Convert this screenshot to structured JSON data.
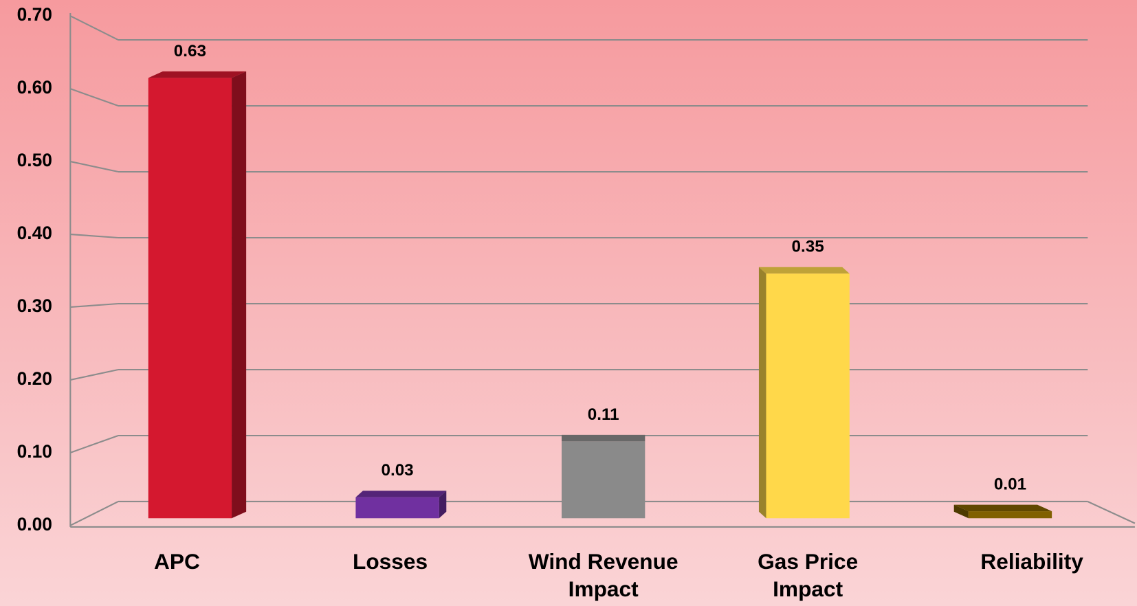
{
  "chart_data": {
    "type": "bar",
    "categories": [
      "APC",
      "Losses",
      "Wind Revenue Impact",
      "Gas Price Impact",
      "Reliability"
    ],
    "values": [
      0.63,
      0.03,
      0.11,
      0.35,
      0.01
    ],
    "colors": [
      "#d4182f",
      "#7030a0",
      "#8a8a8a",
      "#ffd84a",
      "#806000"
    ],
    "ylim": [
      0,
      0.7
    ],
    "yticks": [
      {
        "value": 0,
        "label": "0.00"
      },
      {
        "value": 0.1,
        "label": "0.10"
      },
      {
        "value": 0.2,
        "label": "0.20"
      },
      {
        "value": 0.3,
        "label": "0.30"
      },
      {
        "value": 0.4,
        "label": "0.40"
      },
      {
        "value": 0.5,
        "label": "0.50"
      },
      {
        "value": 0.6,
        "label": "0.60"
      },
      {
        "value": 0.7,
        "label": "0.70"
      }
    ],
    "grid": true
  }
}
